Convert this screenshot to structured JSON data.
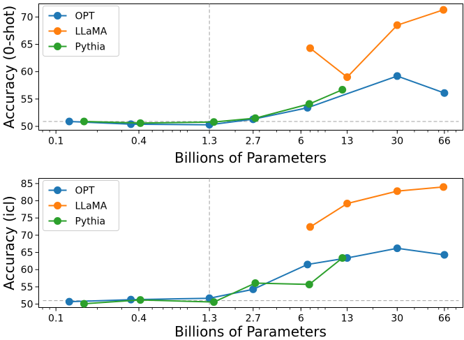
{
  "chart_data": [
    {
      "type": "line",
      "ylabel": "Accuracy (0-shot)",
      "xlabel": "Billions of Parameters",
      "xscale": "log",
      "xlim": [
        0.075,
        90
      ],
      "ylim": [
        49.3,
        72.4
      ],
      "xticks": [
        0.1,
        0.4,
        1.3,
        2.7,
        6,
        13,
        30,
        66
      ],
      "xtick_labels": [
        "0.1",
        "0.4",
        "1.3",
        "2.7",
        "6",
        "13",
        "30",
        "66"
      ],
      "yticks": [
        50,
        55,
        60,
        65,
        70
      ],
      "ytick_labels": [
        "50",
        "55",
        "60",
        "65",
        "70"
      ],
      "reference_x": 1.3,
      "reference_y": 50.9,
      "legend_position": "top-left",
      "series": [
        {
          "name": "OPT",
          "color": "#1f77b4",
          "x": [
            0.125,
            0.35,
            1.3,
            2.7,
            6.7,
            30,
            66
          ],
          "y": [
            50.9,
            50.4,
            50.3,
            51.3,
            53.4,
            59.2,
            56.1
          ]
        },
        {
          "name": "LLaMA",
          "color": "#ff7f0e",
          "x": [
            7,
            13,
            30,
            65
          ],
          "y": [
            64.3,
            59.0,
            68.5,
            71.3
          ]
        },
        {
          "name": "Pythia",
          "color": "#2ca02c",
          "x": [
            0.16,
            0.41,
            1.4,
            2.8,
            6.9,
            12
          ],
          "y": [
            50.9,
            50.6,
            50.8,
            51.5,
            54.1,
            56.7
          ]
        }
      ]
    },
    {
      "type": "line",
      "ylabel": "Accuracy (icl)",
      "xlabel": "Billions of Parameters",
      "xscale": "log",
      "xlim": [
        0.075,
        90
      ],
      "ylim": [
        49.0,
        86.5
      ],
      "xticks": [
        0.1,
        0.4,
        1.3,
        2.7,
        6,
        13,
        30,
        66
      ],
      "xtick_labels": [
        "0.1",
        "0.4",
        "1.3",
        "2.7",
        "6",
        "13",
        "30",
        "66"
      ],
      "yticks": [
        50,
        55,
        60,
        65,
        70,
        75,
        80,
        85
      ],
      "ytick_labels": [
        "50",
        "55",
        "60",
        "65",
        "70",
        "75",
        "80",
        "85"
      ],
      "reference_x": 1.3,
      "reference_y": 51.0,
      "legend_position": "top-left",
      "series": [
        {
          "name": "OPT",
          "color": "#1f77b4",
          "x": [
            0.125,
            0.35,
            1.3,
            2.7,
            6.7,
            13,
            30,
            66
          ],
          "y": [
            50.7,
            51.3,
            51.7,
            54.3,
            61.5,
            63.4,
            66.2,
            64.3
          ]
        },
        {
          "name": "LLaMA",
          "color": "#ff7f0e",
          "x": [
            7,
            13,
            30,
            65
          ],
          "y": [
            72.4,
            79.2,
            82.8,
            84.0
          ]
        },
        {
          "name": "Pythia",
          "color": "#2ca02c",
          "x": [
            0.16,
            0.41,
            1.4,
            2.8,
            6.9,
            12
          ],
          "y": [
            50.1,
            51.2,
            50.6,
            56.1,
            55.7,
            63.4
          ]
        }
      ]
    }
  ]
}
